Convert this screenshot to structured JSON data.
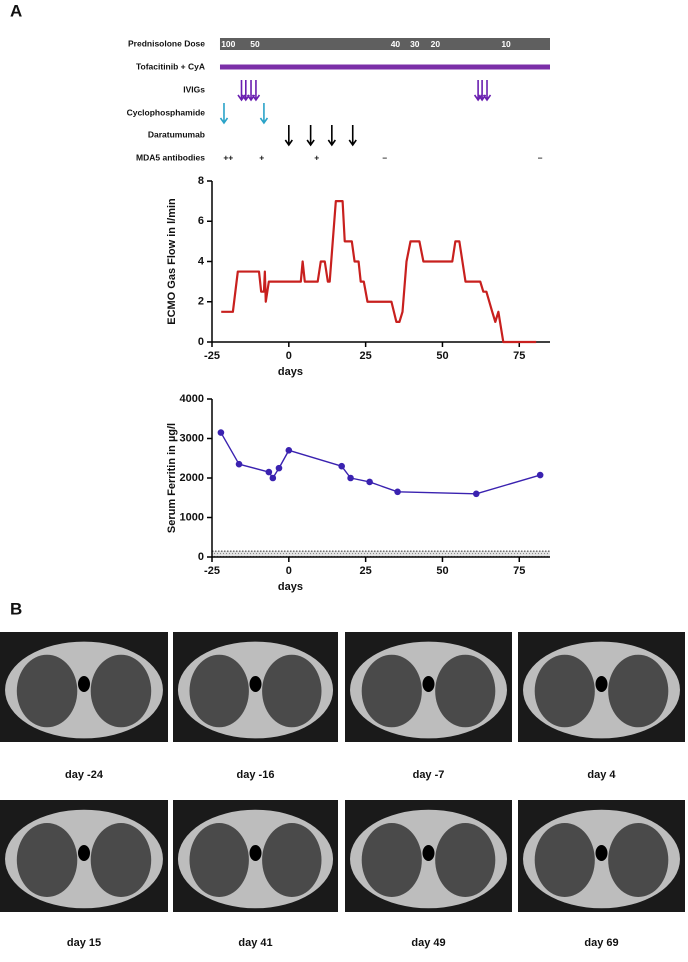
{
  "panel_labels": [
    "A",
    "B"
  ],
  "timeline": {
    "rows": [
      {
        "label": "Prednisolone Dose",
        "kind": "bar",
        "color": "#5f5f5f",
        "span": [
          -22.4,
          85
        ],
        "doses": [
          {
            "day": -19.7,
            "dose": 100
          },
          {
            "day": -11,
            "dose": 50
          },
          {
            "day": 34.7,
            "dose": 40
          },
          {
            "day": 41,
            "dose": 30
          },
          {
            "day": 47.7,
            "dose": 20
          },
          {
            "day": 70.7,
            "dose": 10
          }
        ]
      },
      {
        "label": "Tofacitinib + CyA",
        "kind": "line",
        "color": "#7b2fa8",
        "span": [
          -22.4,
          85
        ]
      },
      {
        "label": "IVIGs",
        "kind": "arrows",
        "color": "#6a1fb0",
        "days": [
          -15.4,
          -14,
          -12.3,
          -10.7,
          61.6,
          62.9,
          64.5
        ]
      },
      {
        "label": "Cyclophosphamide",
        "kind": "arrows",
        "color": "#2aa3c8",
        "days": [
          -21.1,
          -8.1
        ]
      },
      {
        "label": "Daratumumab",
        "kind": "arrows",
        "color": "#000000",
        "days": [
          0,
          7.1,
          14,
          20.8
        ]
      },
      {
        "label": "MDA5 antibodies",
        "kind": "text",
        "marks": [
          {
            "day": -19.7,
            "label": "++"
          },
          {
            "day": -8.8,
            "label": "+"
          },
          {
            "day": 9.1,
            "label": "+"
          },
          {
            "day": 31.2,
            "label": "–"
          },
          {
            "day": 81.8,
            "label": "–"
          }
        ]
      }
    ]
  },
  "chart_data": [
    {
      "type": "line",
      "ylabel": "ECMO Gas Flow in l/min",
      "xlabel": "days",
      "x": [
        -22,
        -18.2,
        -16.6,
        -9.7,
        -9,
        -8.1,
        -7.8,
        -7.5,
        -6.5,
        3.9,
        4.5,
        5.2,
        9.4,
        10.4,
        11.7,
        12.7,
        13.3,
        15.3,
        17.5,
        18.2,
        20.5,
        21.4,
        22.7,
        23.4,
        24.4,
        25.6,
        33.4,
        35,
        36,
        37,
        38.3,
        39.6,
        42.5,
        43.8,
        53.2,
        54.2,
        55.5,
        57.5,
        62.3,
        63.3,
        64.3,
        66.2,
        67.2,
        68.2,
        69.8,
        80.5
      ],
      "series": [
        {
          "color": "#c8201e",
          "values": [
            1.5,
            1.5,
            3.5,
            3.5,
            2.5,
            2.5,
            3.5,
            2,
            3,
            3,
            4,
            3,
            3,
            4,
            4,
            3,
            3,
            7,
            7,
            5,
            5,
            4,
            4,
            3,
            3,
            2,
            2,
            1,
            1,
            1.5,
            4,
            5,
            5,
            4,
            4,
            5,
            5,
            3,
            3,
            2.5,
            2.5,
            1.5,
            1,
            1.5,
            0,
            0
          ]
        }
      ],
      "xlim": [
        -25,
        85
      ],
      "xticks": [
        -25,
        0,
        25,
        50,
        75
      ],
      "ylim": [
        0,
        8
      ],
      "yticks": [
        0,
        2,
        4,
        6,
        8
      ]
    },
    {
      "type": "line",
      "markers": true,
      "ylabel": "Serum Ferritin in µg/l",
      "xlabel": "days",
      "x": [
        -22.1,
        -16.2,
        -6.5,
        -5.2,
        -3.2,
        0,
        17.2,
        20.1,
        26.3,
        35.4,
        61,
        81.8
      ],
      "series": [
        {
          "color": "#3a22b0",
          "values": [
            3150,
            2350,
            2150,
            2000,
            2250,
            2700,
            2300,
            2000,
            1900,
            1650,
            1600,
            2075
          ]
        }
      ],
      "reference_band": [
        0,
        150
      ],
      "xlim": [
        -25,
        85
      ],
      "xticks": [
        -25,
        0,
        25,
        50,
        75
      ],
      "ylim": [
        0,
        4000
      ],
      "yticks": [
        0,
        1000,
        2000,
        3000,
        4000
      ]
    }
  ],
  "ct_images": {
    "captions": [
      "day -24",
      "day -16",
      "day -7",
      "day 4",
      "day 15",
      "day 41",
      "day 49",
      "day 69"
    ]
  }
}
